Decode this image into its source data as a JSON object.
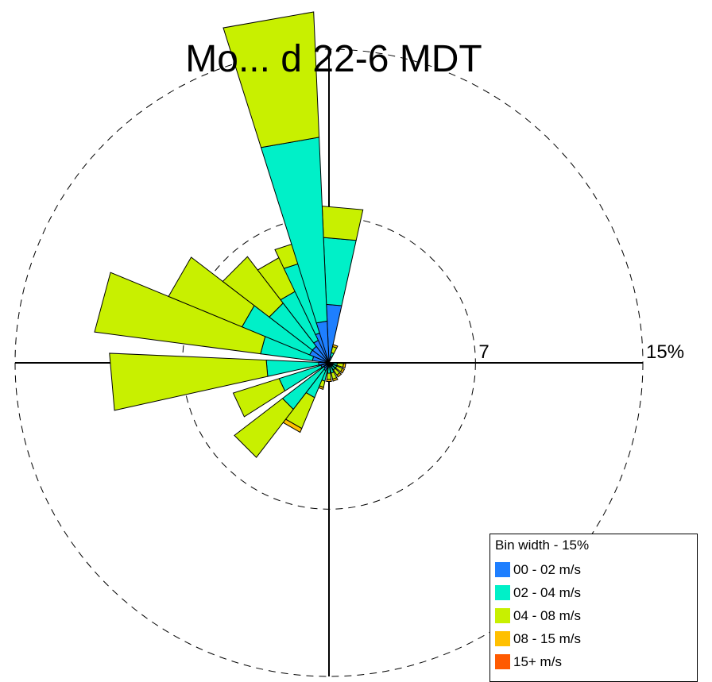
{
  "title": "Mo... d 22-6 MDT",
  "chart_data": {
    "type": "polar-bar",
    "title": "Mo... d 22-6 MDT",
    "ring_labels": [
      "7",
      "15%"
    ],
    "rings": [
      7,
      15
    ],
    "legend": {
      "title": "Bin width - 15%",
      "bins": [
        {
          "label": "00 - 02 m/s",
          "color": "#1e7fff"
        },
        {
          "label": "02 - 04 m/s",
          "color": "#00f0c8"
        },
        {
          "label": "04 - 08 m/s",
          "color": "#c8f000"
        },
        {
          "label": "08 - 15 m/s",
          "color": "#ffc000"
        },
        {
          "label": "15+ m/s",
          "color": "#ff5a00"
        }
      ]
    },
    "directions": [
      {
        "dir": 0,
        "segments": [
          0.0,
          0.0,
          0.0,
          0.0,
          0.0
        ]
      },
      {
        "dir": 5,
        "segments": [
          2.8,
          3.2,
          1.5,
          0,
          0
        ]
      },
      {
        "dir": 20,
        "segments": [
          0.3,
          0.2,
          0.3,
          0.1,
          0
        ]
      },
      {
        "dir": 100,
        "segments": [
          0.2,
          0.2,
          0.3,
          0.1,
          0
        ]
      },
      {
        "dir": 120,
        "segments": [
          0.2,
          0.2,
          0.3,
          0.1,
          0
        ]
      },
      {
        "dir": 140,
        "segments": [
          0.2,
          0.2,
          0.3,
          0.1,
          0
        ]
      },
      {
        "dir": 160,
        "segments": [
          0.2,
          0.3,
          0.3,
          0.1,
          0
        ]
      },
      {
        "dir": 180,
        "segments": [
          0.2,
          0.3,
          0.3,
          0.1,
          0
        ]
      },
      {
        "dir": 200,
        "segments": [
          0.3,
          0.6,
          0.3,
          0.1,
          0
        ]
      },
      {
        "dir": 210,
        "segments": [
          0.4,
          1.4,
          1.6,
          0.2,
          0
        ]
      },
      {
        "dir": 225,
        "segments": [
          0.3,
          2.5,
          2.9,
          0,
          0
        ]
      },
      {
        "dir": 245,
        "segments": [
          0.4,
          2.1,
          2.3,
          0,
          0
        ]
      },
      {
        "dir": 265,
        "segments": [
          0.5,
          2.5,
          7.5,
          0,
          0
        ]
      },
      {
        "dir": 285,
        "segments": [
          0.8,
          2.5,
          8.0,
          0,
          0
        ]
      },
      {
        "dir": 300,
        "segments": [
          1.0,
          3.5,
          3.8,
          0,
          0
        ]
      },
      {
        "dir": 315,
        "segments": [
          1.0,
          2.6,
          2.8,
          0,
          0
        ]
      },
      {
        "dir": 330,
        "segments": [
          1.2,
          2.6,
          1.8,
          0,
          0
        ]
      },
      {
        "dir": 342,
        "segments": [
          1.5,
          3.5,
          1.0,
          0,
          0
        ]
      },
      {
        "dir": 350,
        "segments": [
          2.0,
          8.8,
          6.0,
          0,
          0
        ]
      }
    ]
  }
}
